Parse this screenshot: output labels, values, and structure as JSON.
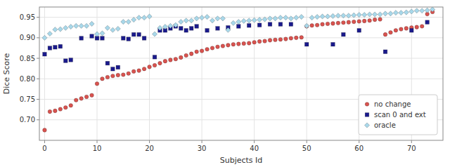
{
  "chart_data": {
    "type": "scatter",
    "xlabel": "Subjects Id",
    "ylabel": "Dice Score",
    "xlim": [
      -1,
      76
    ],
    "ylim": [
      0.65,
      0.975
    ],
    "xticks": [
      0,
      10,
      20,
      30,
      40,
      50,
      60,
      70
    ],
    "yticks": [
      {
        "value": 0.7,
        "label": "0.70"
      },
      0.75,
      {
        "value": 0.8,
        "label": "0.80"
      },
      0.85,
      {
        "value": 0.9,
        "label": "0.90"
      },
      0.95
    ],
    "grid": true,
    "legend": "lower right",
    "series": [
      {
        "name": "no change",
        "color": "#d9534f",
        "marker": "circle",
        "x": [
          0,
          1,
          2,
          3,
          4,
          5,
          6,
          7,
          8,
          9,
          10,
          11,
          12,
          13,
          14,
          15,
          16,
          17,
          18,
          19,
          20,
          21,
          22,
          23,
          24,
          25,
          26,
          27,
          28,
          29,
          30,
          31,
          32,
          33,
          34,
          35,
          36,
          37,
          38,
          39,
          40,
          41,
          42,
          43,
          44,
          45,
          46,
          47,
          48,
          49,
          50,
          51,
          52,
          53,
          54,
          55,
          56,
          57,
          58,
          59,
          60,
          61,
          62,
          63,
          64,
          65,
          66,
          67,
          68,
          69,
          70,
          71,
          72,
          73,
          74
        ],
        "values": [
          0.675,
          0.72,
          0.722,
          0.726,
          0.73,
          0.735,
          0.748,
          0.752,
          0.756,
          0.76,
          0.788,
          0.8,
          0.804,
          0.807,
          0.809,
          0.81,
          0.813,
          0.818,
          0.82,
          0.824,
          0.829,
          0.833,
          0.838,
          0.843,
          0.846,
          0.848,
          0.852,
          0.857,
          0.861,
          0.866,
          0.868,
          0.872,
          0.875,
          0.878,
          0.88,
          0.882,
          0.884,
          0.885,
          0.886,
          0.887,
          0.889,
          0.891,
          0.892,
          0.894,
          0.895,
          0.896,
          0.897,
          0.899,
          0.9,
          0.901,
          0.928,
          0.93,
          0.931,
          0.933,
          0.934,
          0.935,
          0.936,
          0.937,
          0.938,
          0.939,
          0.94,
          0.941,
          0.942,
          0.944,
          0.945,
          0.908,
          0.913,
          0.918,
          0.921,
          0.923,
          0.925,
          0.926,
          0.928,
          0.958,
          0.963
        ]
      },
      {
        "name": "scan 0 and ext",
        "color": "#1a1a8c",
        "marker": "square",
        "x": [
          0,
          1,
          2,
          3,
          4,
          5,
          7,
          9,
          10,
          11,
          12,
          13,
          14,
          15,
          16,
          17,
          18,
          19,
          21,
          22,
          23,
          24,
          25,
          26,
          27,
          28,
          29,
          31,
          33,
          35,
          37,
          39,
          41,
          43,
          45,
          47,
          50,
          55,
          57,
          60,
          65,
          70,
          73
        ],
        "values": [
          0.86,
          0.875,
          0.877,
          0.879,
          0.844,
          0.846,
          0.899,
          0.904,
          0.899,
          0.899,
          0.838,
          0.824,
          0.828,
          0.899,
          0.897,
          0.908,
          0.908,
          0.899,
          0.853,
          0.918,
          0.918,
          0.923,
          0.928,
          0.923,
          0.918,
          0.923,
          0.928,
          0.918,
          0.923,
          0.925,
          0.928,
          0.93,
          0.931,
          0.933,
          0.933,
          0.933,
          0.884,
          0.884,
          0.908,
          0.918,
          0.866,
          0.918,
          0.938
        ]
      },
      {
        "name": "oracle",
        "color": "#a8d8ea",
        "marker": "diamond",
        "x": [
          0,
          1,
          2,
          3,
          4,
          5,
          6,
          7,
          8,
          9,
          10,
          11,
          12,
          13,
          14,
          15,
          16,
          17,
          18,
          19,
          20,
          21,
          22,
          23,
          24,
          25,
          26,
          27,
          28,
          29,
          30,
          31,
          32,
          33,
          34,
          35,
          36,
          37,
          38,
          39,
          40,
          41,
          42,
          43,
          44,
          45,
          46,
          47,
          48,
          49,
          50,
          51,
          52,
          53,
          54,
          55,
          56,
          57,
          58,
          59,
          60,
          61,
          62,
          63,
          64,
          65,
          66,
          67,
          68,
          69,
          70,
          71,
          72,
          73,
          74
        ],
        "values": [
          0.9,
          0.91,
          0.92,
          0.921,
          0.924,
          0.927,
          0.929,
          0.929,
          0.929,
          0.934,
          0.909,
          0.911,
          0.924,
          0.919,
          0.922,
          0.939,
          0.939,
          0.944,
          0.949,
          0.949,
          0.952,
          0.909,
          0.924,
          0.927,
          0.929,
          0.931,
          0.939,
          0.942,
          0.942,
          0.947,
          0.949,
          0.951,
          0.942,
          0.947,
          0.947,
          0.919,
          0.936,
          0.939,
          0.941,
          0.942,
          0.943,
          0.944,
          0.945,
          0.947,
          0.947,
          0.949,
          0.949,
          0.947,
          0.949,
          0.951,
          0.929,
          0.949,
          0.951,
          0.952,
          0.952,
          0.953,
          0.954,
          0.954,
          0.954,
          0.955,
          0.956,
          0.956,
          0.957,
          0.957,
          0.957,
          0.959,
          0.959,
          0.961,
          0.961,
          0.962,
          0.964,
          0.966,
          0.966,
          0.967,
          0.969
        ]
      }
    ]
  }
}
